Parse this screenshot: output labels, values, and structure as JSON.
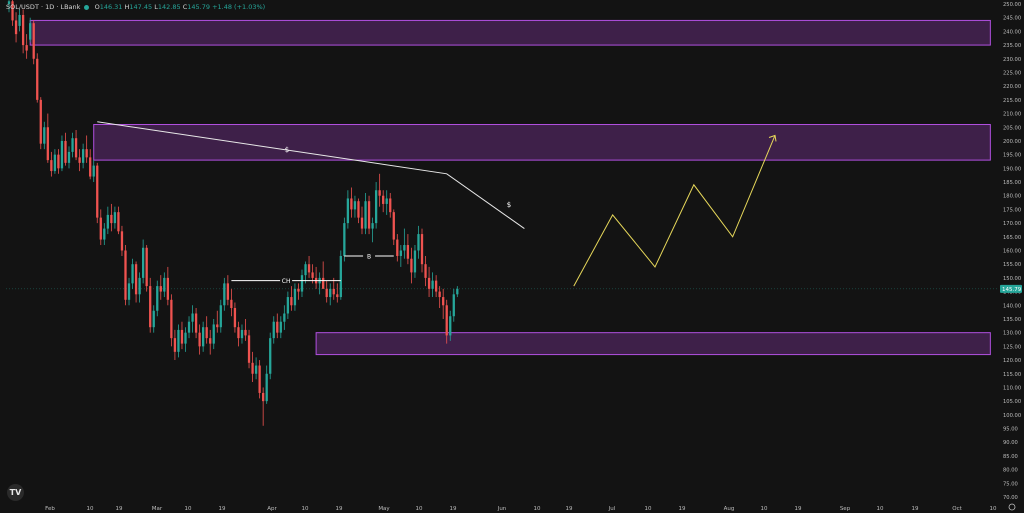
{
  "header": {
    "symbol": "SOL/USDT · 1D · LBank",
    "open": "146.31",
    "high": "147.45",
    "low": "142.85",
    "close": "145.79",
    "change": "+1.48 (+1.03%)"
  },
  "logo_text": "TV",
  "price_label": "145.79",
  "colors": {
    "background": "#131313",
    "up": "#26a69a",
    "down": "#ef5350",
    "zone_fill": "#5b2a6e",
    "zone_stroke": "#b150e0",
    "trendline": "#e8e8e8",
    "projection": "#e6d75a"
  },
  "annotations": {
    "choch": "CH",
    "bos": "B",
    "liq1": "$",
    "liq2": "$"
  },
  "chart_data": {
    "type": "candlestick",
    "y_axis": {
      "min": 70,
      "max": 250,
      "ticks": [
        "250.00",
        "245.00",
        "240.00",
        "235.00",
        "230.00",
        "225.00",
        "220.00",
        "215.00",
        "210.00",
        "205.00",
        "200.00",
        "195.00",
        "190.00",
        "185.00",
        "180.00",
        "175.00",
        "170.00",
        "165.00",
        "160.00",
        "155.00",
        "150.00",
        "145.00",
        "140.00",
        "135.00",
        "130.00",
        "125.00",
        "120.00",
        "115.00",
        "110.00",
        "105.00",
        "100.00",
        "95.00",
        "90.00",
        "85.00",
        "80.00",
        "75.00",
        "70.00"
      ]
    },
    "x_axis": {
      "ticks": [
        "Feb",
        "10",
        "19",
        "Mar",
        "10",
        "19",
        "Apr",
        "10",
        "19",
        "May",
        "10",
        "19",
        "Jun",
        "10",
        "19",
        "Jul",
        "10",
        "19",
        "Aug",
        "10",
        "19",
        "Sep",
        "10",
        "19",
        "Oct",
        "10"
      ]
    },
    "zones": [
      {
        "from_day": 6,
        "to_day": 278,
        "low": 235,
        "high": 244
      },
      {
        "from_day": 24,
        "to_day": 278,
        "low": 193,
        "high": 206
      },
      {
        "from_day": 87,
        "to_day": 278,
        "low": 122,
        "high": 130
      }
    ],
    "projection": [
      {
        "day": 160,
        "price": 147
      },
      {
        "day": 171,
        "price": 173
      },
      {
        "day": 183,
        "price": 154
      },
      {
        "day": 194,
        "price": 184
      },
      {
        "day": 205,
        "price": 165
      },
      {
        "day": 217,
        "price": 202
      }
    ],
    "trendline": [
      {
        "day": 25,
        "price": 207
      },
      {
        "day": 124,
        "price": 188
      },
      {
        "day": 146,
        "price": 168
      }
    ],
    "levels": [
      {
        "key": "choch",
        "from_day": 63,
        "to_day": 94,
        "price": 149
      },
      {
        "key": "bos",
        "from_day": 95,
        "to_day": 109,
        "price": 158
      }
    ],
    "candles": [
      [
        0,
        250,
        254,
        247,
        251
      ],
      [
        1,
        251,
        253,
        242,
        244
      ],
      [
        2,
        244,
        247,
        236,
        239
      ],
      [
        3,
        242,
        248,
        240,
        246
      ],
      [
        4,
        246,
        248,
        232,
        235
      ],
      [
        5,
        235,
        239,
        230,
        233
      ],
      [
        6,
        237,
        245,
        236,
        243
      ],
      [
        7,
        243,
        244,
        228,
        230
      ],
      [
        8,
        230,
        232,
        214,
        215
      ],
      [
        9,
        215,
        216,
        197,
        199
      ],
      [
        10,
        199,
        207,
        197,
        205
      ],
      [
        11,
        205,
        210,
        192,
        193
      ],
      [
        12,
        193,
        196,
        187,
        189
      ],
      [
        13,
        189,
        197,
        188,
        195
      ],
      [
        14,
        195,
        197,
        188,
        190
      ],
      [
        15,
        190,
        202,
        189,
        200
      ],
      [
        16,
        200,
        203,
        191,
        192
      ],
      [
        17,
        192,
        198,
        190,
        196
      ],
      [
        18,
        196,
        203,
        194,
        201
      ],
      [
        19,
        201,
        204,
        193,
        194
      ],
      [
        20,
        194,
        197,
        189,
        192
      ],
      [
        21,
        192,
        199,
        190,
        197
      ],
      [
        22,
        197,
        202,
        192,
        194
      ],
      [
        23,
        194,
        197,
        186,
        187
      ],
      [
        24,
        187,
        193,
        185,
        191
      ],
      [
        25,
        191,
        192,
        170,
        172
      ],
      [
        26,
        172,
        175,
        162,
        164
      ],
      [
        27,
        164,
        170,
        162,
        168
      ],
      [
        28,
        168,
        176,
        166,
        173
      ],
      [
        29,
        173,
        177,
        167,
        170
      ],
      [
        30,
        170,
        176,
        168,
        174
      ],
      [
        31,
        174,
        176,
        166,
        167
      ],
      [
        32,
        167,
        169,
        158,
        160
      ],
      [
        33,
        160,
        162,
        140,
        142
      ],
      [
        34,
        142,
        150,
        140,
        148
      ],
      [
        35,
        148,
        157,
        146,
        155
      ],
      [
        36,
        155,
        156,
        141,
        144
      ],
      [
        37,
        144,
        152,
        141,
        150
      ],
      [
        38,
        150,
        164,
        148,
        161
      ],
      [
        39,
        161,
        162,
        145,
        147
      ],
      [
        40,
        147,
        150,
        130,
        132
      ],
      [
        41,
        132,
        140,
        130,
        138
      ],
      [
        42,
        138,
        149,
        136,
        147
      ],
      [
        43,
        147,
        151,
        142,
        145
      ],
      [
        44,
        145,
        152,
        143,
        150
      ],
      [
        45,
        150,
        154,
        140,
        142
      ],
      [
        46,
        142,
        144,
        125,
        128
      ],
      [
        47,
        128,
        131,
        120,
        123
      ],
      [
        48,
        123,
        133,
        121,
        131
      ],
      [
        49,
        131,
        134,
        124,
        126
      ],
      [
        50,
        126,
        132,
        123,
        130
      ],
      [
        51,
        130,
        136,
        128,
        134
      ],
      [
        52,
        134,
        140,
        130,
        137
      ],
      [
        53,
        137,
        139,
        128,
        130
      ],
      [
        54,
        130,
        133,
        122,
        125
      ],
      [
        55,
        125,
        134,
        123,
        132
      ],
      [
        56,
        132,
        136,
        126,
        128
      ],
      [
        57,
        128,
        131,
        122,
        126
      ],
      [
        58,
        126,
        135,
        124,
        133
      ],
      [
        59,
        133,
        138,
        130,
        132
      ],
      [
        60,
        132,
        142,
        130,
        140
      ],
      [
        61,
        140,
        150,
        138,
        148
      ],
      [
        62,
        148,
        151,
        140,
        142
      ],
      [
        63,
        142,
        146,
        136,
        139
      ],
      [
        64,
        139,
        141,
        130,
        132
      ],
      [
        65,
        132,
        134,
        125,
        128
      ],
      [
        66,
        128,
        133,
        126,
        131
      ],
      [
        67,
        131,
        135,
        127,
        129
      ],
      [
        68,
        129,
        131,
        117,
        119
      ],
      [
        69,
        119,
        123,
        112,
        115
      ],
      [
        70,
        115,
        121,
        113,
        118
      ],
      [
        71,
        118,
        120,
        106,
        108
      ],
      [
        72,
        108,
        110,
        96,
        105
      ],
      [
        73,
        105,
        118,
        104,
        115
      ],
      [
        74,
        115,
        130,
        113,
        128
      ],
      [
        75,
        128,
        136,
        126,
        134
      ],
      [
        76,
        134,
        137,
        128,
        130
      ],
      [
        77,
        130,
        136,
        128,
        134
      ],
      [
        78,
        134,
        140,
        131,
        137
      ],
      [
        79,
        137,
        145,
        135,
        143
      ],
      [
        80,
        143,
        147,
        138,
        140
      ],
      [
        81,
        140,
        148,
        138,
        146
      ],
      [
        82,
        146,
        148,
        142,
        145
      ],
      [
        83,
        145,
        153,
        143,
        151
      ],
      [
        84,
        151,
        156,
        148,
        155
      ],
      [
        85,
        155,
        158,
        150,
        152
      ],
      [
        86,
        152,
        155,
        148,
        150
      ],
      [
        87,
        150,
        154,
        146,
        148
      ],
      [
        88,
        148,
        152,
        144,
        150
      ],
      [
        89,
        150,
        156,
        147,
        146
      ],
      [
        90,
        146,
        149,
        141,
        143
      ],
      [
        91,
        143,
        148,
        140,
        146
      ],
      [
        92,
        146,
        150,
        142,
        144
      ],
      [
        93,
        144,
        148,
        141,
        143
      ],
      [
        94,
        143,
        160,
        142,
        158
      ],
      [
        95,
        158,
        172,
        156,
        170
      ],
      [
        96,
        170,
        182,
        168,
        179
      ],
      [
        97,
        179,
        183,
        172,
        175
      ],
      [
        98,
        175,
        180,
        172,
        178
      ],
      [
        99,
        178,
        179,
        170,
        172
      ],
      [
        100,
        172,
        176,
        166,
        168
      ],
      [
        101,
        168,
        181,
        166,
        178
      ],
      [
        102,
        178,
        180,
        166,
        168
      ],
      [
        103,
        168,
        172,
        163,
        170
      ],
      [
        104,
        170,
        185,
        168,
        182
      ],
      [
        105,
        182,
        188,
        176,
        180
      ],
      [
        106,
        180,
        182,
        174,
        177
      ],
      [
        107,
        177,
        182,
        173,
        179
      ],
      [
        108,
        179,
        181,
        172,
        174
      ],
      [
        109,
        174,
        175,
        162,
        164
      ],
      [
        110,
        164,
        166,
        156,
        158
      ],
      [
        111,
        158,
        162,
        154,
        160
      ],
      [
        112,
        160,
        168,
        157,
        162
      ],
      [
        113,
        162,
        166,
        155,
        157
      ],
      [
        114,
        157,
        161,
        148,
        152
      ],
      [
        115,
        152,
        162,
        150,
        160
      ],
      [
        116,
        160,
        169,
        157,
        166
      ],
      [
        117,
        166,
        168,
        152,
        155
      ],
      [
        118,
        155,
        158,
        147,
        150
      ],
      [
        119,
        150,
        154,
        143,
        146
      ],
      [
        120,
        146,
        152,
        143,
        149
      ],
      [
        121,
        149,
        151,
        143,
        145
      ],
      [
        122,
        145,
        147,
        139,
        143
      ],
      [
        123,
        143,
        146,
        135,
        140
      ],
      [
        124,
        140,
        142,
        126,
        129
      ],
      [
        125,
        129,
        138,
        127,
        136
      ],
      [
        126,
        136,
        146,
        134,
        144
      ],
      [
        127,
        144,
        147,
        143,
        146
      ]
    ]
  }
}
